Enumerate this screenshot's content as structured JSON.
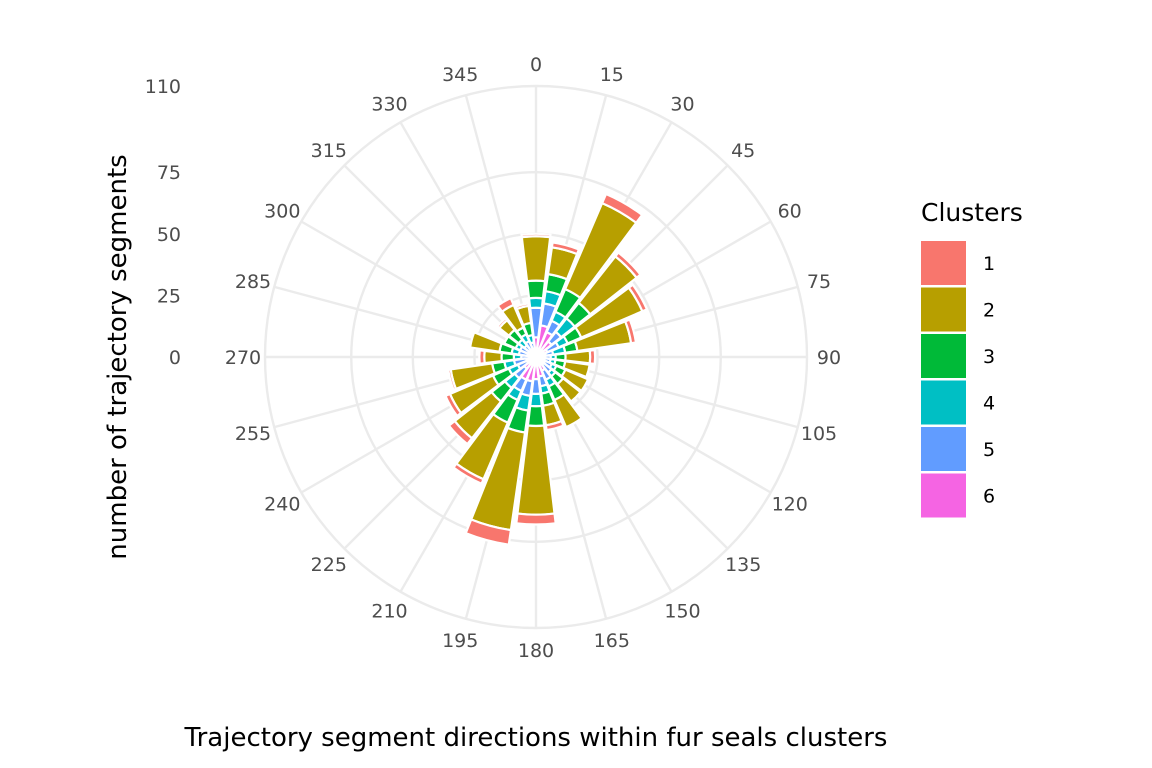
{
  "chart_data": {
    "type": "bar",
    "coord": "polar",
    "xlabel": "Trajectory segment directions within fur seals clusters",
    "ylabel": "number of trajectory segments",
    "angle_ticks": [
      "0",
      "15",
      "30",
      "45",
      "60",
      "75",
      "90",
      "105",
      "120",
      "135",
      "150",
      "165",
      "180",
      "195",
      "210",
      "225",
      "240",
      "255",
      "270",
      "285",
      "300",
      "315",
      "330",
      "345"
    ],
    "radial_ticks": [
      0,
      25,
      50,
      75,
      110
    ],
    "radial_tick_labels": [
      "0",
      "25",
      "50",
      "75",
      "110"
    ],
    "radial_range": [
      0,
      110
    ],
    "grid": true,
    "legend": {
      "title": "Clusters",
      "position": "right",
      "entries": [
        {
          "label": "1",
          "color": "#F8766D"
        },
        {
          "label": "2",
          "color": "#B79F00"
        },
        {
          "label": "3",
          "color": "#00BA38"
        },
        {
          "label": "4",
          "color": "#00BFC4"
        },
        {
          "label": "5",
          "color": "#619CFF"
        },
        {
          "label": "6",
          "color": "#F564E3"
        }
      ]
    },
    "series_order_from_center": [
      "6",
      "5",
      "4",
      "3",
      "2",
      "1"
    ],
    "directions": [
      0,
      15,
      30,
      45,
      60,
      75,
      90,
      105,
      120,
      135,
      150,
      165,
      180,
      195,
      210,
      225,
      240,
      255,
      270,
      285,
      300,
      315,
      330,
      345
    ],
    "series": [
      {
        "name": "1",
        "values": [
          1,
          2,
          4,
          2,
          2,
          2,
          2,
          0,
          0,
          0,
          0,
          2,
          4,
          6,
          2,
          3,
          2,
          1,
          2,
          0,
          0,
          1,
          3,
          1
        ]
      },
      {
        "name": "2",
        "values": [
          18,
          11,
          38,
          24,
          27,
          22,
          10,
          10,
          10,
          9,
          12,
          8,
          36,
          40,
          25,
          19,
          19,
          17,
          7,
          12,
          0,
          5,
          10,
          7
        ]
      },
      {
        "name": "3",
        "values": [
          7,
          7,
          10,
          8,
          6,
          5,
          4,
          4,
          4,
          4,
          6,
          5,
          8,
          9,
          10,
          7,
          7,
          5,
          5,
          5,
          5,
          5,
          3,
          5
        ]
      },
      {
        "name": "4",
        "values": [
          4,
          5,
          4,
          7,
          4,
          5,
          2,
          2,
          2,
          2,
          3,
          3,
          5,
          6,
          4,
          5,
          4,
          4,
          3,
          3,
          2,
          3,
          3,
          3
        ]
      },
      {
        "name": "5",
        "values": [
          12,
          9,
          5,
          5,
          5,
          3,
          3,
          3,
          3,
          4,
          4,
          4,
          6,
          6,
          5,
          5,
          4,
          5,
          3,
          4,
          5,
          4,
          5,
          4
        ]
      },
      {
        "name": "6",
        "values": [
          8,
          13,
          11,
          8,
          5,
          4,
          3,
          3,
          4,
          4,
          6,
          8,
          9,
          10,
          10,
          6,
          4,
          4,
          3,
          3,
          2,
          2,
          2,
          2
        ]
      }
    ]
  }
}
